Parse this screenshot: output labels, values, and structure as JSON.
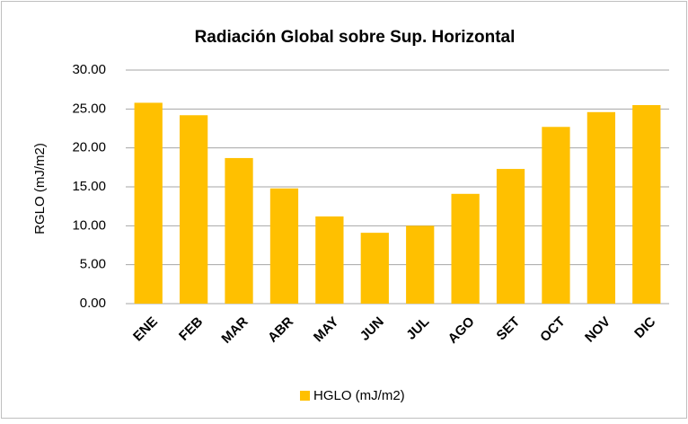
{
  "chart_data": {
    "type": "bar",
    "title": "Radiación Global sobre Sup. Horizontal",
    "y_label": "RGLO (mJ/m2)",
    "categories": [
      "ENE",
      "FEB",
      "MAR",
      "ABR",
      "MAY",
      "JUN",
      "JUL",
      "AGO",
      "SET",
      "OCT",
      "NOV",
      "DIC"
    ],
    "series": [
      {
        "name": "HGLO (mJ/m2)",
        "color": "#ffc000",
        "values": [
          25.8,
          24.2,
          18.7,
          14.8,
          11.2,
          9.1,
          10.0,
          14.1,
          17.3,
          22.7,
          24.6,
          25.5
        ]
      }
    ],
    "ylim": [
      0,
      30
    ],
    "yticks": [
      {
        "value": 0,
        "label": "0.00"
      },
      {
        "value": 5,
        "label": "5.00"
      },
      {
        "value": 10,
        "label": "10.00"
      },
      {
        "value": 15,
        "label": "15.00"
      },
      {
        "value": 20,
        "label": "20.00"
      },
      {
        "value": 25,
        "label": "25.00"
      },
      {
        "value": 30,
        "label": "30.00"
      }
    ],
    "grid": true,
    "legend": "bottom"
  }
}
